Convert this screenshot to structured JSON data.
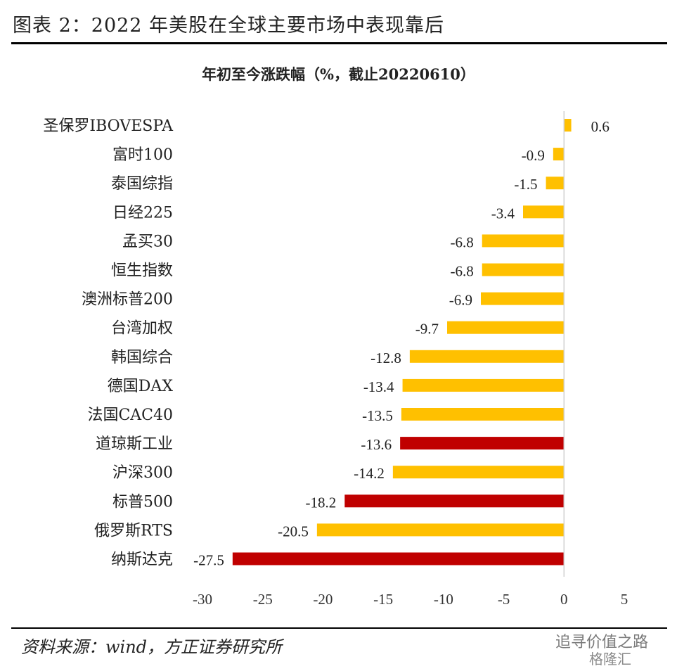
{
  "header": {
    "figure_title": "图表 2：2022 年美股在全球主要市场中表现靠后"
  },
  "chart_data": {
    "type": "bar",
    "orientation": "horizontal",
    "title": "年初至今涨跌幅（%，截止20220610）",
    "categories": [
      "圣保罗IBOVESPA",
      "富时100",
      "泰国综指",
      "日经225",
      "孟买30",
      "恒生指数",
      "澳洲标普200",
      "台湾加权",
      "韩国综合",
      "德国DAX",
      "法国CAC40",
      "道琼斯工业",
      "沪深300",
      "标普500",
      "俄罗斯RTS",
      "纳斯达克"
    ],
    "values": [
      0.6,
      -0.9,
      -1.5,
      -3.4,
      -6.8,
      -6.8,
      -6.9,
      -9.7,
      -12.8,
      -13.4,
      -13.5,
      -13.6,
      -14.2,
      -18.2,
      -20.5,
      -27.5
    ],
    "value_labels": [
      "0.6",
      "-0.9",
      "-1.5",
      "-3.4",
      "-6.8",
      "-6.8",
      "-6.9",
      "-9.7",
      "-12.8",
      "-13.4",
      "-13.5",
      "-13.6",
      "-14.2",
      "-18.2",
      "-20.5",
      "-27.5"
    ],
    "highlight": [
      false,
      false,
      false,
      false,
      false,
      false,
      false,
      false,
      false,
      false,
      false,
      true,
      false,
      true,
      false,
      true
    ],
    "colors": {
      "default": "#FFC000",
      "highlight": "#C00000"
    },
    "xlim": [
      -30,
      5
    ],
    "xticks": [
      -30,
      -25,
      -20,
      -15,
      -10,
      -5,
      0,
      5
    ],
    "grid": false,
    "legend": "none"
  },
  "footer": {
    "source": "资料来源：wind，方正证券研究所",
    "watermark_line1": "追寻价值之路",
    "watermark_line2": "格隆汇"
  }
}
